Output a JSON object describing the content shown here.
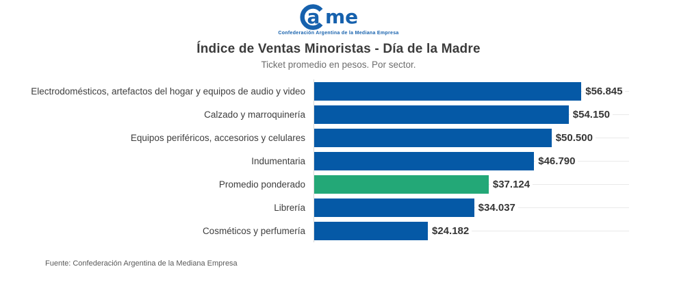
{
  "header": {
    "logo": {
      "part_a": "a",
      "part_me": "me",
      "tagline": "Confederación Argentina de la Mediana Empresa"
    }
  },
  "chart_data": {
    "type": "bar",
    "orientation": "horizontal",
    "title": "Índice de Ventas Minoristas - Día de la Madre",
    "subtitle": "Ticket promedio en pesos. Por sector.",
    "categories": [
      "Electrodomésticos, artefactos del hogar y equipos de audio y video",
      "Calzado y marroquinería",
      "Equipos periféricos, accesorios y celulares",
      "Indumentaria",
      "Promedio ponderado",
      "Librería",
      "Cosméticos y perfumería"
    ],
    "values": [
      56845,
      54150,
      50500,
      46790,
      37124,
      34037,
      24182
    ],
    "value_labels": [
      "$56.845",
      "$54.150",
      "$50.500",
      "$46.790",
      "$37.124",
      "$34.037",
      "$24.182"
    ],
    "highlight_index": 4,
    "xlim": [
      0,
      67000
    ],
    "grid": "horizontal row lines",
    "legend": "none",
    "xlabel": "",
    "ylabel": ""
  },
  "footer": {
    "source": "Fuente: Confederación Argentina de la Mediana Empresa"
  },
  "colors": {
    "bar_blue": "#0559a6",
    "bar_green": "#23a877",
    "logo_blue": "#1661ad",
    "title_gray": "#3b3b3b",
    "grid_gray": "#e9e9e9"
  }
}
